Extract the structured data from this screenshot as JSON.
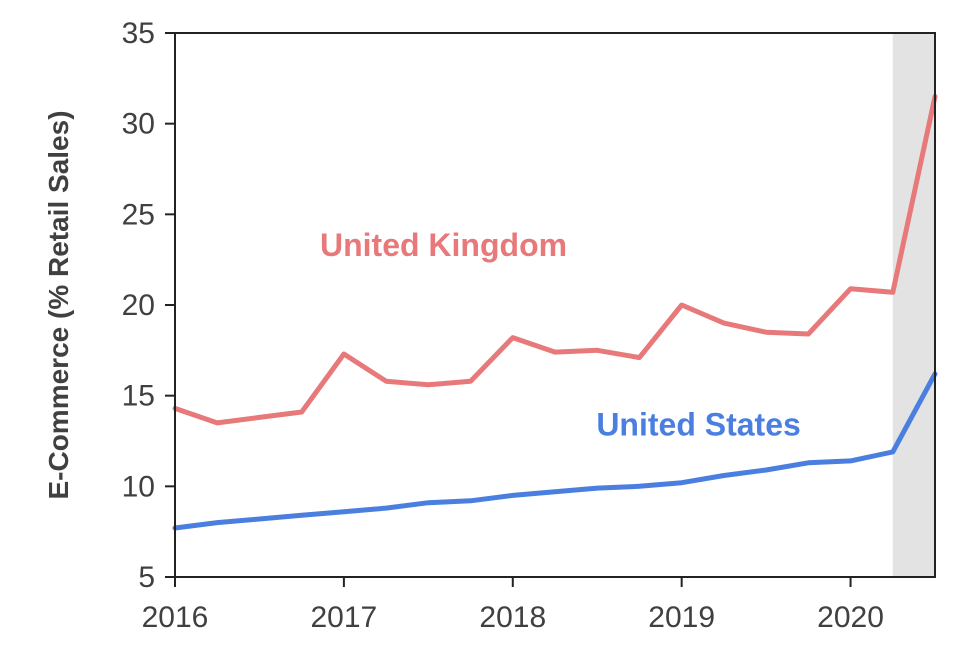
{
  "chart_data": {
    "type": "line",
    "title": "",
    "xlabel": "",
    "ylabel": "E-Commerce (% Retail Sales)",
    "xlim": [
      2016,
      2020.5
    ],
    "ylim": [
      5,
      35
    ],
    "xticks": [
      2016,
      2017,
      2018,
      2019,
      2020
    ],
    "yticks": [
      5,
      10,
      15,
      20,
      25,
      30,
      35
    ],
    "grid": false,
    "highlight_band": {
      "from": 2020.25,
      "to": 2020.5,
      "color": "#e3e3e3"
    },
    "x": [
      2016.0,
      2016.25,
      2016.5,
      2016.75,
      2017.0,
      2017.25,
      2017.5,
      2017.75,
      2018.0,
      2018.25,
      2018.5,
      2018.75,
      2019.0,
      2019.25,
      2019.5,
      2019.75,
      2020.0,
      2020.25,
      2020.5
    ],
    "series": [
      {
        "name": "United Kingdom",
        "color": "#e8797b",
        "values": [
          14.3,
          13.5,
          13.8,
          14.1,
          17.3,
          15.8,
          15.6,
          15.8,
          18.2,
          17.4,
          17.5,
          17.1,
          20.0,
          19.0,
          18.5,
          18.4,
          20.9,
          20.7,
          31.5
        ]
      },
      {
        "name": "United States",
        "color": "#4a7fe0",
        "values": [
          7.7,
          8.0,
          8.2,
          8.4,
          8.6,
          8.8,
          9.1,
          9.2,
          9.5,
          9.7,
          9.9,
          10.0,
          10.2,
          10.6,
          10.9,
          11.3,
          11.4,
          11.9,
          16.2
        ]
      }
    ]
  }
}
